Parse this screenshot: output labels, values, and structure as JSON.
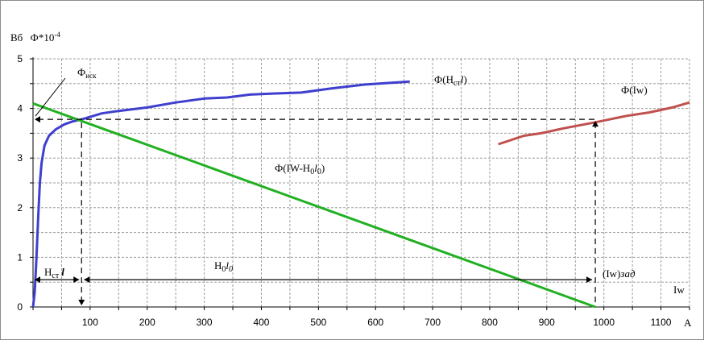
{
  "chart_data": {
    "type": "line",
    "y_unit": "Вб",
    "y_scale_label": "Ф*10",
    "y_scale_exponent": "-4",
    "x_unit": "А",
    "x_ticks": [
      "100",
      "200",
      "300",
      "400",
      "500",
      "600",
      "700",
      "800",
      "900",
      "1000",
      "1100"
    ],
    "y_ticks": [
      "0",
      "1",
      "2",
      "3",
      "4",
      "5"
    ],
    "xlim": [
      0,
      1150
    ],
    "ylim": [
      0,
      5
    ],
    "grid": true,
    "series": [
      {
        "name": "Ф(Нстl)",
        "color": "#3f3fcf",
        "points": [
          [
            0,
            0
          ],
          [
            3,
            0.3
          ],
          [
            6,
            1.0
          ],
          [
            9,
            1.8
          ],
          [
            12,
            2.5
          ],
          [
            15,
            2.9
          ],
          [
            20,
            3.25
          ],
          [
            28,
            3.45
          ],
          [
            40,
            3.58
          ],
          [
            55,
            3.68
          ],
          [
            70,
            3.74
          ],
          [
            85,
            3.78
          ],
          [
            100,
            3.83
          ],
          [
            120,
            3.9
          ],
          [
            150,
            3.95
          ],
          [
            200,
            4.02
          ],
          [
            250,
            4.12
          ],
          [
            300,
            4.2
          ],
          [
            340,
            4.22
          ],
          [
            380,
            4.28
          ],
          [
            420,
            4.3
          ],
          [
            470,
            4.32
          ],
          [
            520,
            4.4
          ],
          [
            580,
            4.48
          ],
          [
            630,
            4.52
          ],
          [
            660,
            4.54
          ]
        ]
      },
      {
        "name": "Ф(Iw-Н0l0)",
        "color": "#22b022",
        "points": [
          [
            0,
            4.1
          ],
          [
            985,
            0
          ]
        ]
      },
      {
        "name": "Ф(Iw)",
        "color": "#c0504d",
        "points": [
          [
            815,
            3.28
          ],
          [
            860,
            3.45
          ],
          [
            890,
            3.5
          ],
          [
            930,
            3.6
          ],
          [
            985,
            3.72
          ],
          [
            1040,
            3.85
          ],
          [
            1080,
            3.92
          ],
          [
            1120,
            4.02
          ],
          [
            1150,
            4.12
          ]
        ]
      }
    ],
    "annotations": {
      "phi_isk_main": "Ф",
      "phi_isk_sub": "иск",
      "label_ncl_main": "Н",
      "label_ncl_sub": "ст",
      "label_ncl_italic": "l",
      "label_h0l0_h": "Н",
      "label_h0l0_sub": "0",
      "label_h0l0_l": "l",
      "label_h0l0_sub2": "0",
      "iw_zad_prefix": "(Iw)",
      "iw_zad_suffix": "зад",
      "iw_axis": "Iw",
      "series1_label_prefix": "Ф(Н",
      "series1_label_sub": "ст",
      "series1_label_l": "l",
      "series1_label_close": ")",
      "series2_label_prefix": "Ф(IW-Н",
      "series2_label_sub": "0",
      "series2_label_l": "l",
      "series2_label_sub2": "0",
      "series2_label_close": ")",
      "series3_label": "Ф(Iw)"
    },
    "intersection": {
      "x": 85,
      "y": 3.78
    },
    "iw_zad_x": 985
  }
}
